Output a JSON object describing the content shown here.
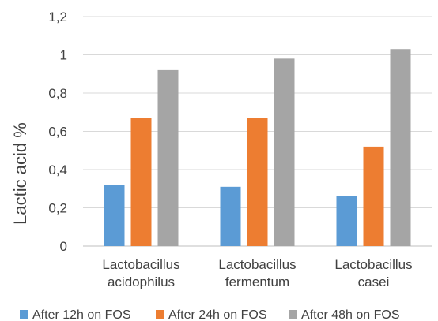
{
  "chart_data": {
    "type": "bar",
    "title": "",
    "xlabel": "",
    "ylabel": "Lactic acid %",
    "ylim": [
      0,
      1.2
    ],
    "yticks": [
      "0",
      "0,2",
      "0,4",
      "0,6",
      "0,8",
      "1",
      "1,2"
    ],
    "grid": true,
    "legend_position": "bottom",
    "categories": [
      [
        "Lactobacillus",
        "acidophilus"
      ],
      [
        "Lactobacillus",
        "fermentum"
      ],
      [
        "Lactobacillus",
        "casei"
      ]
    ],
    "series": [
      {
        "name": "After 12h on FOS",
        "color": "#5B9BD5",
        "values": [
          0.32,
          0.31,
          0.26
        ]
      },
      {
        "name": "After 24h on FOS",
        "color": "#ED7D31",
        "values": [
          0.67,
          0.67,
          0.52
        ]
      },
      {
        "name": "After 48h on FOS",
        "color": "#A5A5A5",
        "values": [
          0.92,
          0.98,
          1.03
        ]
      }
    ]
  }
}
